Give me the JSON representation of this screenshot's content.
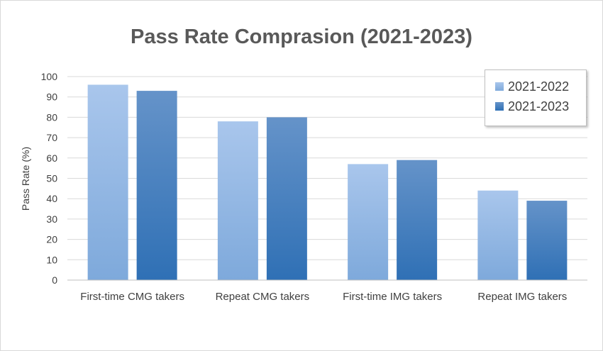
{
  "chart_data": {
    "type": "bar",
    "title": "Pass Rate Comprasion (2021-2023)",
    "xlabel": "",
    "ylabel": "Pass Rate (%)",
    "ylim": [
      0,
      100
    ],
    "yticks": [
      0,
      10,
      20,
      30,
      40,
      50,
      60,
      70,
      80,
      90,
      100
    ],
    "grid": true,
    "legend_position": "top-right",
    "categories": [
      "First-time CMG takers",
      "Repeat CMG takers",
      "First-time IMG takers",
      "Repeat IMG takers"
    ],
    "series": [
      {
        "name": "2021-2022",
        "values": [
          96,
          78,
          57,
          44
        ],
        "color": "#9dbde6"
      },
      {
        "name": "2021-2023",
        "values": [
          93,
          80,
          59,
          39
        ],
        "color": "#4a86c5"
      }
    ]
  }
}
